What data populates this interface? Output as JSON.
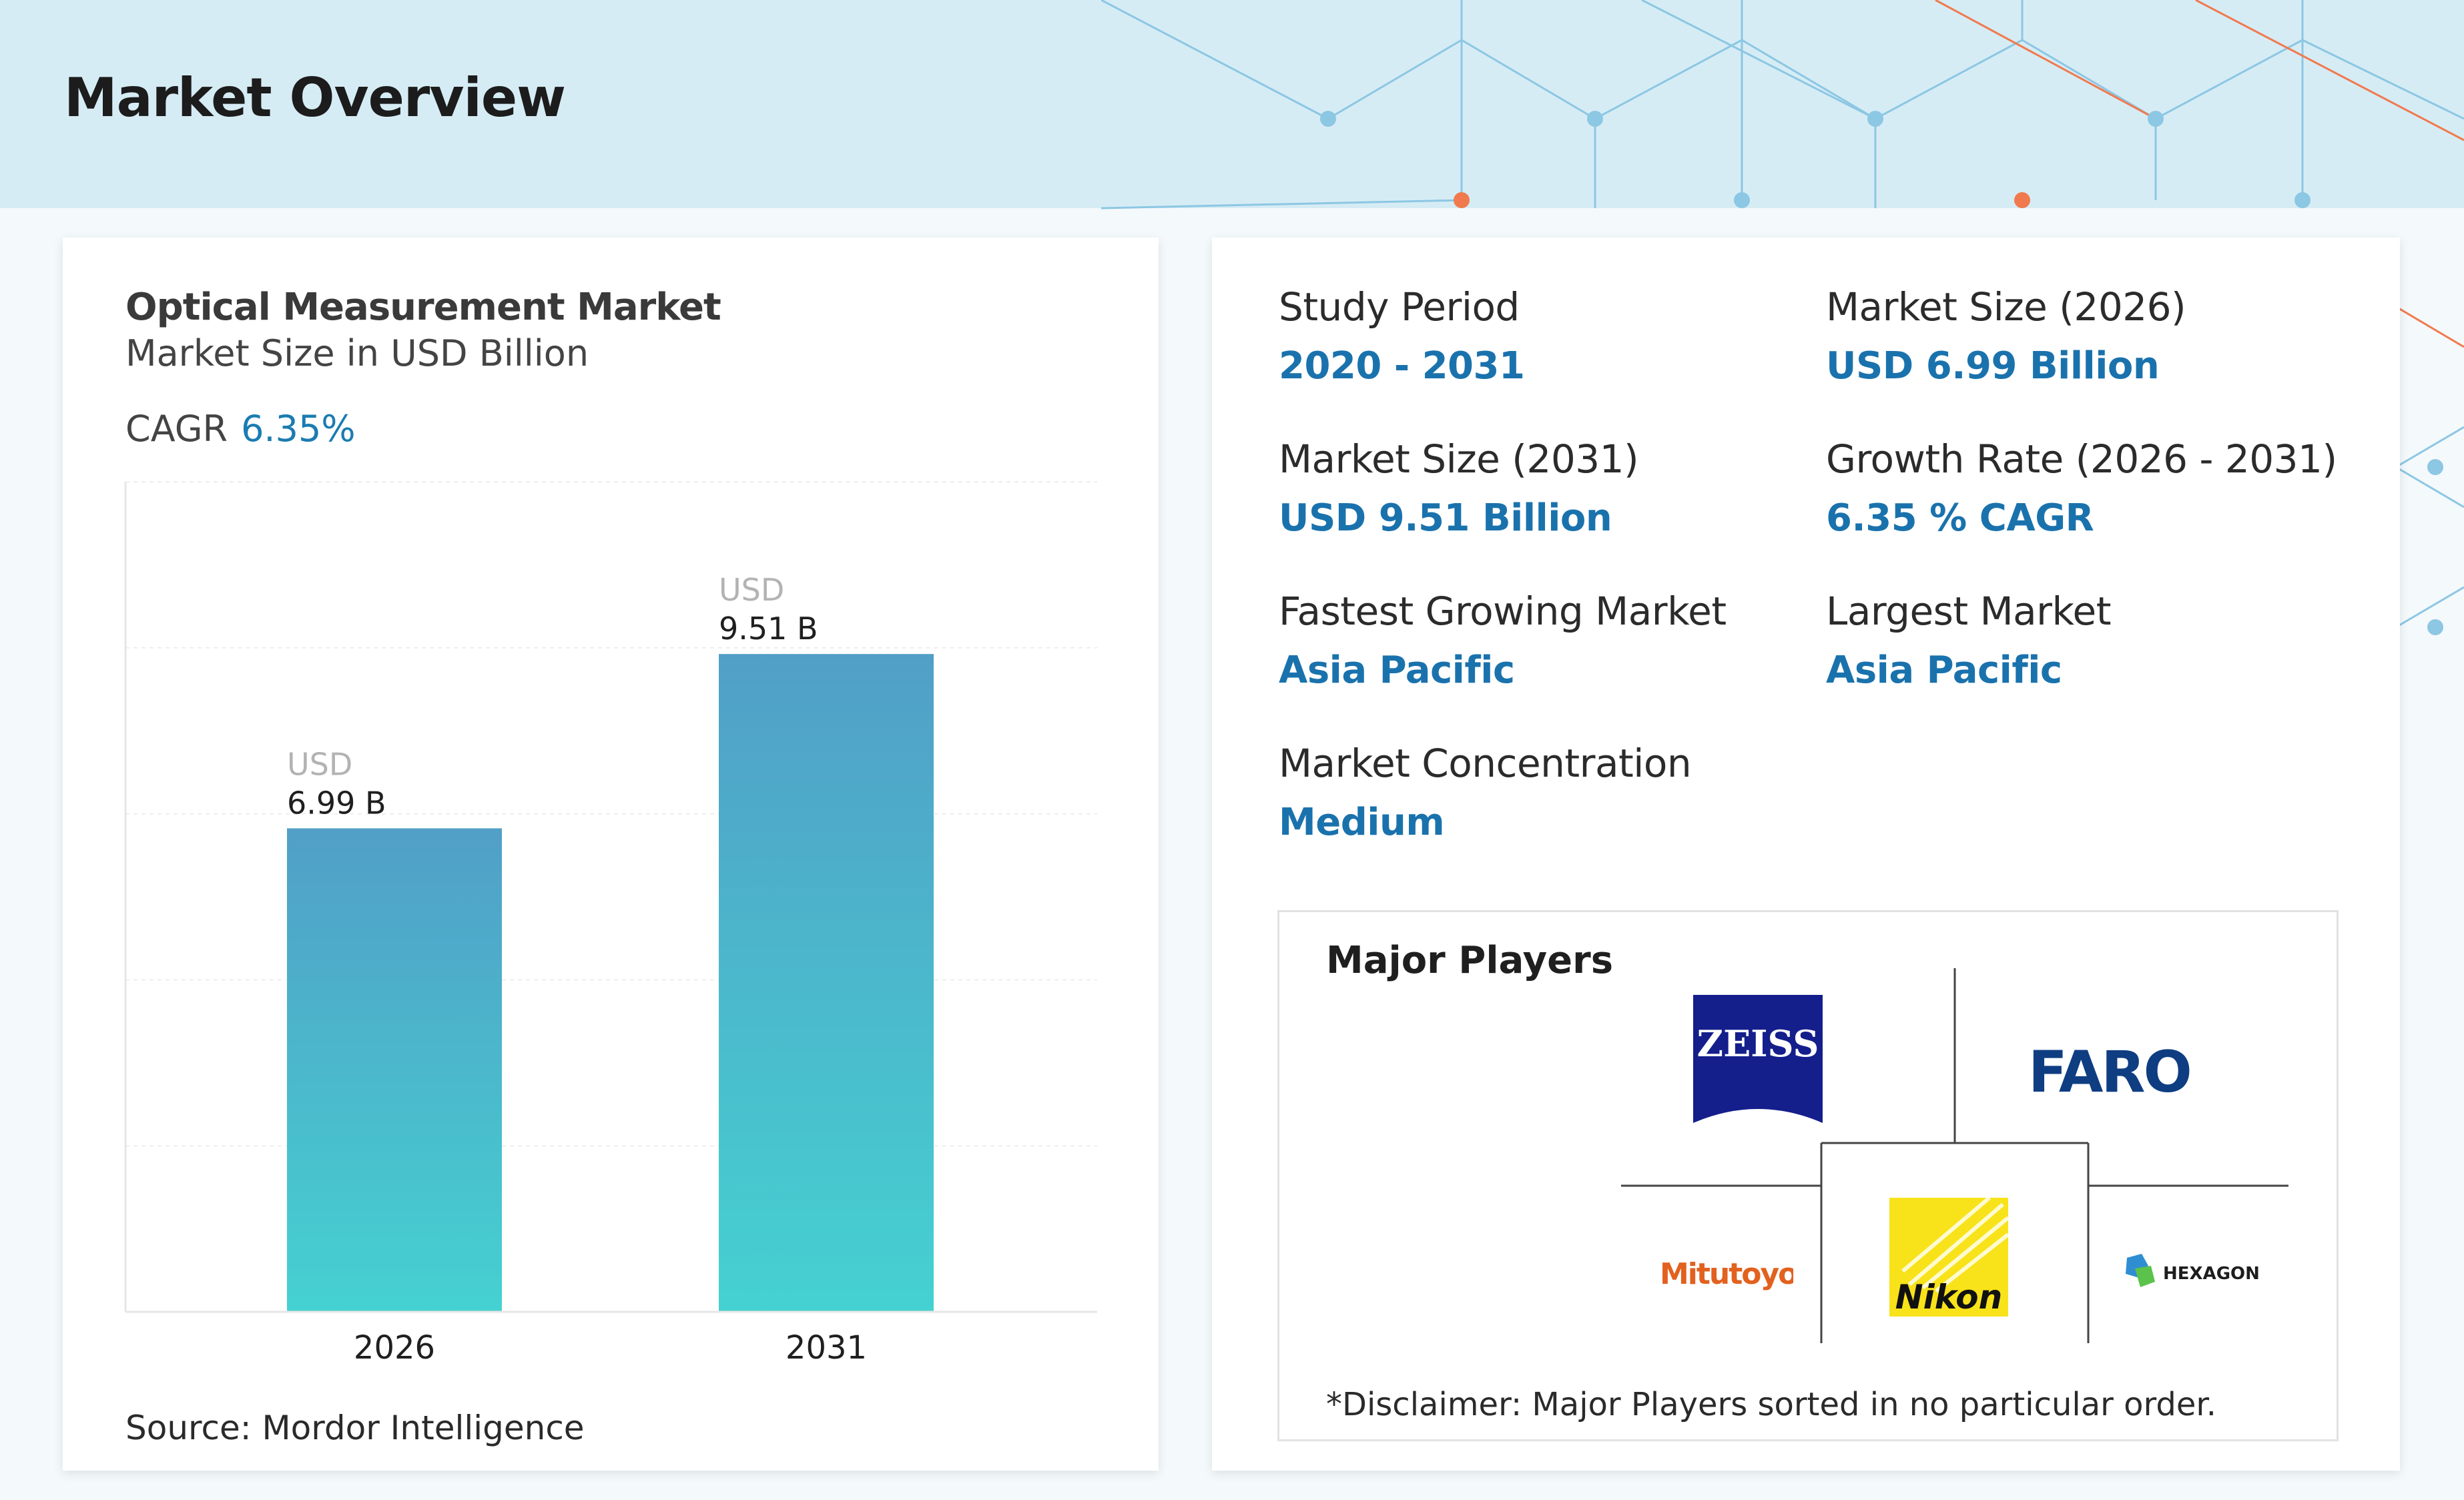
{
  "page": {
    "title": "Market Overview"
  },
  "chart_card": {
    "title": "Optical Measurement Market",
    "subtitle": "Market Size in USD Billion",
    "cagr_label": "CAGR",
    "cagr_value": "6.35%",
    "source": "Source: Mordor Intelligence"
  },
  "chart_data": {
    "type": "bar",
    "categories": [
      "2026",
      "2031"
    ],
    "values": [
      6.99,
      9.51
    ],
    "value_labels": [
      "6.99 B",
      "9.51 B"
    ],
    "value_prefix": "USD",
    "title": "Optical Measurement Market",
    "subtitle": "Market Size in USD Billion",
    "xlabel": "",
    "ylabel": "",
    "ylim": [
      0,
      12
    ],
    "grid": true,
    "legend": "none",
    "colors": {
      "bar_top": "#519fc7",
      "bar_bottom": "#45d1d1"
    }
  },
  "stats": [
    {
      "label": "Study Period",
      "value": "2020 - 2031"
    },
    {
      "label": "Market Size (2026)",
      "value": "USD 6.99 Billion"
    },
    {
      "label": "Market Size (2031)",
      "value": "USD 9.51 Billion"
    },
    {
      "label": "Growth Rate (2026 - 2031)",
      "value": "6.35 % CAGR"
    },
    {
      "label": "Fastest Growing Market",
      "value": "Asia Pacific"
    },
    {
      "label": "Largest Market",
      "value": "Asia Pacific"
    },
    {
      "label": "Market Concentration",
      "value": "Medium"
    }
  ],
  "players": {
    "title": "Major Players",
    "disclaimer": "*Disclaimer: Major Players sorted in no particular order.",
    "logos": [
      {
        "name": "ZEISS",
        "text": "ZEISS",
        "color": "#141f8c"
      },
      {
        "name": "FARO",
        "text": "FARO",
        "color": "#0f3d82"
      },
      {
        "name": "Mitutoyo",
        "text": "Mitutoyo",
        "color": "#e2611f"
      },
      {
        "name": "Nikon",
        "text": "Nikon",
        "color": "#f8e21a"
      },
      {
        "name": "HEXAGON",
        "text": "HEXAGON",
        "color": "#1d1d1d"
      }
    ]
  },
  "colors": {
    "accent": "#1a72ad",
    "header_band": "#d6ecf5",
    "pattern_blue": "#8cc7e3",
    "pattern_orange": "#f07a4e"
  }
}
